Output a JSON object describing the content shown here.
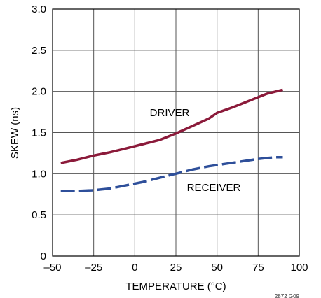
{
  "chart_data": {
    "type": "line",
    "xlabel": "TEMPERATURE (°C)",
    "ylabel": "SKEW (ns)",
    "xlim": [
      -50,
      100
    ],
    "ylim": [
      0,
      3.0
    ],
    "x_ticks": [
      "–50",
      "–25",
      "0",
      "25",
      "50",
      "75",
      "100"
    ],
    "y_ticks": [
      "0",
      "0.5",
      "1.0",
      "1.5",
      "2.0",
      "2.5",
      "3.0"
    ],
    "grid": true,
    "series": [
      {
        "name": "DRIVER",
        "style": "solid",
        "color": "#8b1a3a",
        "x": [
          -45,
          -35,
          -25,
          -15,
          -5,
          5,
          15,
          25,
          35,
          45,
          50,
          60,
          70,
          80,
          90
        ],
        "y": [
          1.13,
          1.17,
          1.22,
          1.26,
          1.31,
          1.36,
          1.41,
          1.49,
          1.58,
          1.67,
          1.74,
          1.81,
          1.89,
          1.97,
          2.02
        ]
      },
      {
        "name": "RECEIVER",
        "style": "dashed",
        "color": "#2e4f9a",
        "x": [
          -45,
          -35,
          -25,
          -15,
          -5,
          5,
          15,
          25,
          35,
          45,
          55,
          65,
          75,
          85,
          90
        ],
        "y": [
          0.79,
          0.79,
          0.8,
          0.82,
          0.86,
          0.9,
          0.95,
          1.0,
          1.05,
          1.09,
          1.12,
          1.15,
          1.18,
          1.2,
          1.2
        ]
      }
    ],
    "annotations": [
      {
        "text": "DRIVER",
        "series": "DRIVER"
      },
      {
        "text": "RECEIVER",
        "series": "RECEIVER"
      }
    ],
    "figure_id": "2872 G09"
  }
}
